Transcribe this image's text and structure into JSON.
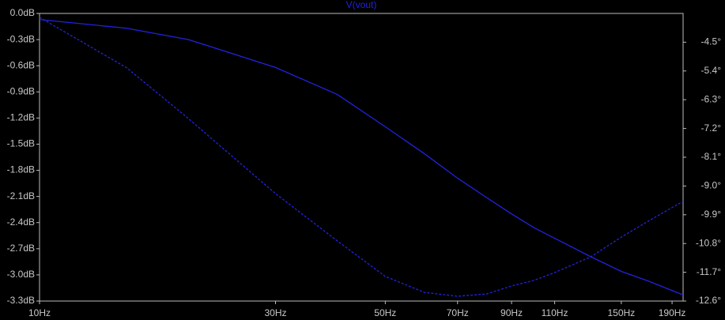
{
  "chart_data": {
    "type": "line",
    "title": "V(vout)",
    "xscale": "log",
    "xlim": [
      10,
      200
    ],
    "xticks": [
      {
        "value": 10,
        "label": "10Hz"
      },
      {
        "value": 30,
        "label": "30Hz"
      },
      {
        "value": 50,
        "label": "50Hz"
      },
      {
        "value": 70,
        "label": "70Hz"
      },
      {
        "value": 90,
        "label": "90Hz"
      },
      {
        "value": 110,
        "label": "110Hz"
      },
      {
        "value": 150,
        "label": "150Hz"
      },
      {
        "value": 190,
        "label": "190Hz"
      }
    ],
    "ylim": [
      -3.3,
      0
    ],
    "yticks": [
      {
        "value": 0,
        "label": "0.0dB"
      },
      {
        "value": -0.3,
        "label": "-0.3dB"
      },
      {
        "value": -0.6,
        "label": "-0.6dB"
      },
      {
        "value": -0.9,
        "label": "-0.9dB"
      },
      {
        "value": -1.2,
        "label": "-1.2dB"
      },
      {
        "value": -1.5,
        "label": "-1.5dB"
      },
      {
        "value": -1.8,
        "label": "-1.8dB"
      },
      {
        "value": -2.1,
        "label": "-2.1dB"
      },
      {
        "value": -2.4,
        "label": "-2.4dB"
      },
      {
        "value": -2.7,
        "label": "-2.7dB"
      },
      {
        "value": -3.0,
        "label": "-3.0dB"
      },
      {
        "value": -3.3,
        "label": "-3.3dB"
      }
    ],
    "y2lim": [
      -12.6,
      -3.6
    ],
    "y2ticks": [
      {
        "value": -4.5,
        "label": "-4.5°"
      },
      {
        "value": -5.4,
        "label": "-5.4°"
      },
      {
        "value": -6.3,
        "label": "-6.3°"
      },
      {
        "value": -7.2,
        "label": "-7.2°"
      },
      {
        "value": -8.1,
        "label": "-8.1°"
      },
      {
        "value": -9.0,
        "label": "-9.0°"
      },
      {
        "value": -9.9,
        "label": "-9.9°"
      },
      {
        "value": -10.8,
        "label": "-10.8°"
      },
      {
        "value": -11.7,
        "label": "-11.7°"
      },
      {
        "value": -12.6,
        "label": "-12.6°"
      }
    ],
    "x": [
      10,
      15,
      20,
      30,
      40,
      50,
      60,
      70,
      80,
      90,
      100,
      110,
      130,
      150,
      170,
      200
    ],
    "series": [
      {
        "color": "#2222e0",
        "values": [
          -0.07,
          -0.17,
          -0.3,
          -0.62,
          -0.93,
          -1.3,
          -1.61,
          -1.89,
          -2.11,
          -2.3,
          -2.46,
          -2.58,
          -2.79,
          -2.96,
          -3.07,
          -3.23
        ]
      },
      {
        "color": "#2222e0",
        "axis": "y2",
        "dashed": true,
        "values": [
          -3.72,
          -5.3,
          -6.89,
          -9.24,
          -10.72,
          -11.83,
          -12.33,
          -12.45,
          -12.38,
          -12.13,
          -11.95,
          -11.71,
          -11.22,
          -10.6,
          -10.1,
          -9.48
        ]
      }
    ]
  }
}
